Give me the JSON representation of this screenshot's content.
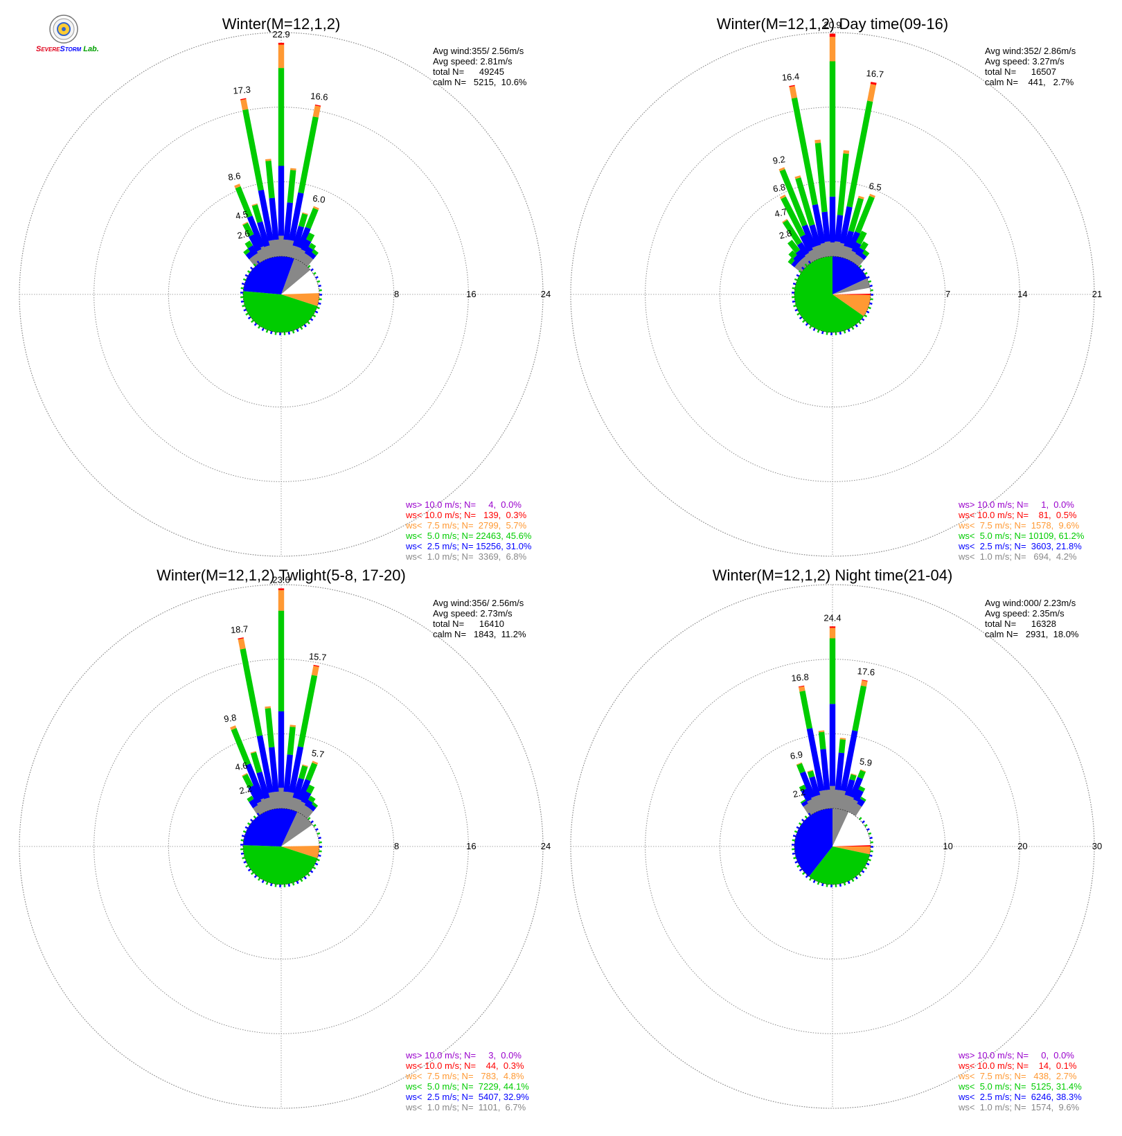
{
  "logo": {
    "text_parts": [
      {
        "text": "S",
        "color": "#e0001a"
      },
      {
        "text": "EVERE",
        "color": "#e0001a"
      },
      {
        "text": "S",
        "color": "#0000ff"
      },
      {
        "text": "TORM",
        "color": "#0000ff"
      },
      {
        "text": "Lab.",
        "color": "#00a000"
      }
    ]
  },
  "colors": {
    "gray": "#888888",
    "blue": "#0000ff",
    "green": "#00cc00",
    "orange": "#ff9933",
    "red": "#ff0000",
    "purple": "#9900cc",
    "grid": "#999999",
    "calm": "#ffffff"
  },
  "chart_data": [
    {
      "type": "windrose",
      "title": "Winter(M=12,1,2)",
      "rings": [
        "8",
        "16",
        "24"
      ],
      "ring_max": 24,
      "stats": [
        "Avg wind:355/ 2.56m/s",
        "Avg speed: 2.81m/s",
        "total N=      49245",
        "calm N=   5215,  10.6%"
      ],
      "directions": [
        {
          "dir": 0,
          "total": 22.9,
          "label": "22.9",
          "parts": {
            "gray": 2.2,
            "blue": 7.5,
            "green": 10.5,
            "orange": 2.5,
            "red": 0.2
          }
        },
        {
          "dir": -11,
          "total": 17.3,
          "label": "17.3",
          "parts": {
            "gray": 1.8,
            "blue": 5.5,
            "green": 8.8,
            "orange": 1.1,
            "red": 0.1
          }
        },
        {
          "dir": 11,
          "total": 16.6,
          "label": "16.6",
          "parts": {
            "gray": 1.8,
            "blue": 5.2,
            "green": 8.3,
            "orange": 1.2,
            "red": 0.1
          }
        },
        {
          "dir": -22,
          "total": 8.6,
          "label": "8.6",
          "parts": {
            "gray": 1.4,
            "blue": 3.5,
            "green": 3.4,
            "orange": 0.3
          }
        },
        {
          "dir": 22,
          "total": 6.0,
          "label": "6.0",
          "parts": {
            "gray": 1.3,
            "blue": 2.3,
            "green": 2.2,
            "orange": 0.2
          }
        },
        {
          "dir": -5.5,
          "total": 10.5,
          "parts": {
            "gray": 1.8,
            "blue": 4.5,
            "green": 4.0,
            "orange": 0.2
          }
        },
        {
          "dir": 5.5,
          "total": 9.5,
          "parts": {
            "gray": 1.8,
            "blue": 4.0,
            "green": 3.5,
            "orange": 0.2
          }
        },
        {
          "dir": -16.5,
          "total": 6.0,
          "parts": {
            "gray": 1.3,
            "blue": 2.7,
            "green": 1.9,
            "orange": 0.1
          }
        },
        {
          "dir": 16.5,
          "total": 5.0,
          "parts": {
            "gray": 1.3,
            "blue": 2.2,
            "green": 1.4,
            "orange": 0.1
          }
        },
        {
          "dir": -27,
          "total": 4.5,
          "label": "4.5",
          "parts": {
            "gray": 1.2,
            "blue": 1.8,
            "green": 1.4,
            "orange": 0.1
          }
        },
        {
          "dir": 27,
          "total": 3.2,
          "parts": {
            "gray": 1.2,
            "blue": 1.2,
            "green": 0.8
          }
        },
        {
          "dir": -33,
          "total": 2.6,
          "label": "2.6",
          "parts": {
            "gray": 1.0,
            "blue": 1.0,
            "green": 0.6
          }
        },
        {
          "dir": 33,
          "total": 2.3,
          "parts": {
            "gray": 1.0,
            "blue": 0.8,
            "green": 0.5
          }
        },
        {
          "dir": -39,
          "total": 2.0,
          "parts": {
            "gray": 1.0,
            "blue": 0.6,
            "green": 0.4
          }
        },
        {
          "dir": 39,
          "total": 1.9,
          "parts": {
            "gray": 1.0,
            "blue": 0.5,
            "green": 0.4
          }
        }
      ],
      "pie": [
        {
          "color": "gray",
          "start": 20,
          "end": 50
        },
        {
          "color": "calm",
          "start": 50,
          "end": 88
        },
        {
          "color": "orange",
          "start": 88,
          "end": 108
        },
        {
          "color": "green",
          "start": 108,
          "end": 275
        },
        {
          "color": "blue",
          "start": 275,
          "end": 380
        }
      ],
      "legend": [
        {
          "text": "ws> 10.0 m/s; N=     4,  0.0%",
          "color": "purple"
        },
        {
          "text": "ws< 10.0 m/s; N=   139,  0.3%",
          "color": "red"
        },
        {
          "text": "ws<  7.5 m/s; N=  2799,  5.7%",
          "color": "orange"
        },
        {
          "text": "ws<  5.0 m/s; N= 22463, 45.6%",
          "color": "green"
        },
        {
          "text": "ws<  2.5 m/s; N= 15256, 31.0%",
          "color": "blue"
        },
        {
          "text": "ws<  1.0 m/s; N=  3369,  6.8%",
          "color": "gray"
        }
      ]
    },
    {
      "type": "windrose",
      "title": "Winter(M=12,1,2) Day time(09-16)",
      "rings": [
        "7",
        "14",
        "21"
      ],
      "ring_max": 21,
      "stats": [
        "Avg wind:352/ 2.86m/s",
        "Avg speed: 3.27m/s",
        "total N=      16507",
        "calm N=    441,   2.7%"
      ],
      "directions": [
        {
          "dir": 0,
          "total": 20.9,
          "label": "20.9",
          "parts": {
            "gray": 1.3,
            "blue": 4.3,
            "green": 12.7,
            "orange": 2.3,
            "red": 0.3
          }
        },
        {
          "dir": -11,
          "total": 16.4,
          "label": "16.4",
          "parts": {
            "gray": 1.3,
            "blue": 3.7,
            "green": 10.2,
            "orange": 1.1,
            "red": 0.1
          }
        },
        {
          "dir": 11,
          "total": 16.7,
          "label": "16.7",
          "parts": {
            "gray": 1.3,
            "blue": 3.5,
            "green": 10.1,
            "orange": 1.6,
            "red": 0.2
          }
        },
        {
          "dir": -5.5,
          "total": 11.0,
          "parts": {
            "gray": 1.4,
            "blue": 2.8,
            "green": 6.5,
            "orange": 0.3
          }
        },
        {
          "dir": 5.5,
          "total": 10.0,
          "parts": {
            "gray": 1.4,
            "blue": 2.5,
            "green": 5.8,
            "orange": 0.3
          }
        },
        {
          "dir": -22,
          "total": 9.2,
          "label": "9.2",
          "parts": {
            "gray": 1.2,
            "blue": 2.2,
            "green": 5.6,
            "orange": 0.2
          }
        },
        {
          "dir": 22,
          "total": 6.5,
          "label": "6.5",
          "parts": {
            "gray": 1.1,
            "blue": 1.6,
            "green": 3.6,
            "orange": 0.2
          }
        },
        {
          "dir": -16.5,
          "total": 8.0,
          "parts": {
            "gray": 1.2,
            "blue": 2.0,
            "green": 4.6,
            "orange": 0.2
          }
        },
        {
          "dir": 16.5,
          "total": 6.0,
          "parts": {
            "gray": 1.1,
            "blue": 1.5,
            "green": 3.2,
            "orange": 0.2
          }
        },
        {
          "dir": -27,
          "total": 6.8,
          "label": "6.8",
          "parts": {
            "gray": 1.0,
            "blue": 1.6,
            "green": 4.0,
            "orange": 0.2
          }
        },
        {
          "dir": 27,
          "total": 3.0,
          "parts": {
            "gray": 0.9,
            "blue": 0.9,
            "green": 1.2
          }
        },
        {
          "dir": -33,
          "total": 4.7,
          "label": "4.7",
          "parts": {
            "gray": 0.9,
            "blue": 1.2,
            "green": 2.5,
            "orange": 0.1
          }
        },
        {
          "dir": 33,
          "total": 2.2,
          "parts": {
            "gray": 0.8,
            "blue": 0.7,
            "green": 0.7
          }
        },
        {
          "dir": -39,
          "total": 2.8,
          "label": "2.8",
          "parts": {
            "gray": 0.8,
            "blue": 0.8,
            "green": 1.2
          }
        },
        {
          "dir": -45,
          "total": 2.0,
          "parts": {
            "gray": 0.8,
            "blue": 0.6,
            "green": 0.6
          }
        },
        {
          "dir": -51,
          "total": 1.6,
          "parts": {
            "gray": 0.8,
            "blue": 0.4,
            "green": 0.4
          }
        },
        {
          "dir": 39,
          "total": 1.6,
          "parts": {
            "gray": 0.8,
            "blue": 0.4,
            "green": 0.4
          }
        }
      ],
      "pie": [
        {
          "color": "blue",
          "start": 0,
          "end": 65
        },
        {
          "color": "gray",
          "start": 65,
          "end": 80
        },
        {
          "color": "calm",
          "start": 80,
          "end": 89
        },
        {
          "color": "red",
          "start": 89,
          "end": 91
        },
        {
          "color": "orange",
          "start": 91,
          "end": 125
        },
        {
          "color": "green",
          "start": 125,
          "end": 360
        }
      ],
      "legend": [
        {
          "text": "ws> 10.0 m/s; N=     1,  0.0%",
          "color": "purple"
        },
        {
          "text": "ws< 10.0 m/s; N=    81,  0.5%",
          "color": "red"
        },
        {
          "text": "ws<  7.5 m/s; N=  1578,  9.6%",
          "color": "orange"
        },
        {
          "text": "ws<  5.0 m/s; N= 10109, 61.2%",
          "color": "green"
        },
        {
          "text": "ws<  2.5 m/s; N=  3603, 21.8%",
          "color": "blue"
        },
        {
          "text": "ws<  1.0 m/s; N=   694,  4.2%",
          "color": "gray"
        }
      ]
    },
    {
      "type": "windrose",
      "title": "Winter(M=12,1,2) Twlight(5-8, 17-20)",
      "rings": [
        "8",
        "16",
        "24"
      ],
      "ring_max": 24,
      "stats": [
        "Avg wind:356/ 2.56m/s",
        "Avg speed: 2.73m/s",
        "total N=      16410",
        "calm N=   1843,  11.2%"
      ],
      "directions": [
        {
          "dir": 0,
          "total": 23.6,
          "label": "23.6",
          "parts": {
            "gray": 2.2,
            "blue": 8.2,
            "green": 10.8,
            "orange": 2.2,
            "red": 0.2
          }
        },
        {
          "dir": -11,
          "total": 18.7,
          "label": "18.7",
          "parts": {
            "gray": 1.8,
            "blue": 6.2,
            "green": 9.5,
            "orange": 1.1,
            "red": 0.1
          }
        },
        {
          "dir": 11,
          "total": 15.7,
          "label": "15.7",
          "parts": {
            "gray": 1.8,
            "blue": 5.0,
            "green": 7.8,
            "orange": 1.0,
            "red": 0.1
          }
        },
        {
          "dir": -5.5,
          "total": 11.0,
          "parts": {
            "gray": 1.8,
            "blue": 4.8,
            "green": 4.2,
            "orange": 0.2
          }
        },
        {
          "dir": 5.5,
          "total": 9.0,
          "parts": {
            "gray": 1.8,
            "blue": 4.0,
            "green": 3.0,
            "orange": 0.2
          }
        },
        {
          "dir": -22,
          "total": 9.8,
          "label": "9.8",
          "parts": {
            "gray": 1.4,
            "blue": 4.0,
            "green": 4.1,
            "orange": 0.3
          }
        },
        {
          "dir": 22,
          "total": 5.7,
          "label": "5.7",
          "parts": {
            "gray": 1.3,
            "blue": 2.3,
            "green": 1.9,
            "orange": 0.2
          }
        },
        {
          "dir": -16.5,
          "total": 6.5,
          "parts": {
            "gray": 1.3,
            "blue": 2.9,
            "green": 2.2,
            "orange": 0.1
          }
        },
        {
          "dir": 16.5,
          "total": 5.0,
          "parts": {
            "gray": 1.3,
            "blue": 2.2,
            "green": 1.4,
            "orange": 0.1
          }
        },
        {
          "dir": -27,
          "total": 4.6,
          "label": "4.6",
          "parts": {
            "gray": 1.2,
            "blue": 1.9,
            "green": 1.4,
            "orange": 0.1
          }
        },
        {
          "dir": 27,
          "total": 3.2,
          "parts": {
            "gray": 1.2,
            "blue": 1.2,
            "green": 0.8
          }
        },
        {
          "dir": -33,
          "total": 2.2,
          "label": "2.2",
          "parts": {
            "gray": 1.0,
            "blue": 0.8,
            "green": 0.4
          }
        },
        {
          "dir": 33,
          "total": 2.2,
          "parts": {
            "gray": 1.0,
            "blue": 0.7,
            "green": 0.5
          }
        },
        {
          "dir": 39,
          "total": 1.8,
          "parts": {
            "gray": 1.0,
            "blue": 0.5,
            "green": 0.3
          }
        }
      ],
      "pie": [
        {
          "color": "gray",
          "start": 25,
          "end": 55
        },
        {
          "color": "calm",
          "start": 55,
          "end": 89
        },
        {
          "color": "orange",
          "start": 89,
          "end": 108
        },
        {
          "color": "green",
          "start": 108,
          "end": 272
        },
        {
          "color": "blue",
          "start": 272,
          "end": 385
        }
      ],
      "legend": [
        {
          "text": "ws> 10.0 m/s; N=     3,  0.0%",
          "color": "purple"
        },
        {
          "text": "ws< 10.0 m/s; N=    44,  0.3%",
          "color": "red"
        },
        {
          "text": "ws<  7.5 m/s; N=   783,  4.8%",
          "color": "orange"
        },
        {
          "text": "ws<  5.0 m/s; N=  7229, 44.1%",
          "color": "green"
        },
        {
          "text": "ws<  2.5 m/s; N=  5407, 32.9%",
          "color": "blue"
        },
        {
          "text": "ws<  1.0 m/s; N=  1101,  6.7%",
          "color": "gray"
        }
      ]
    },
    {
      "type": "windrose",
      "title": "Winter(M=12,1,2) Night time(21-04)",
      "rings": [
        "10",
        "20",
        "30"
      ],
      "ring_max": 30,
      "stats": [
        "Avg wind:000/ 2.23m/s",
        "Avg speed: 2.35m/s",
        "total N=      16328",
        "calm N=   2931,  18.0%"
      ],
      "directions": [
        {
          "dir": 0,
          "total": 24.4,
          "label": "24.4",
          "parts": {
            "gray": 3.0,
            "blue": 11.0,
            "green": 8.8,
            "orange": 1.4,
            "red": 0.2
          }
        },
        {
          "dir": -11,
          "total": 16.8,
          "label": "16.8",
          "parts": {
            "gray": 2.5,
            "blue": 8.5,
            "green": 5.1,
            "orange": 0.6,
            "red": 0.1
          }
        },
        {
          "dir": 11,
          "total": 17.6,
          "label": "17.6",
          "parts": {
            "gray": 2.5,
            "blue": 8.2,
            "green": 6.1,
            "orange": 0.7,
            "red": 0.1
          }
        },
        {
          "dir": -5.5,
          "total": 10.5,
          "parts": {
            "gray": 2.5,
            "blue": 5.5,
            "green": 2.3,
            "orange": 0.2
          }
        },
        {
          "dir": 5.5,
          "total": 9.5,
          "parts": {
            "gray": 2.5,
            "blue": 5.0,
            "green": 1.8,
            "orange": 0.2
          }
        },
        {
          "dir": -22,
          "total": 6.9,
          "label": "6.9",
          "parts": {
            "gray": 2.0,
            "blue": 3.6,
            "green": 1.2,
            "orange": 0.1
          }
        },
        {
          "dir": 22,
          "total": 5.9,
          "label": "5.9",
          "parts": {
            "gray": 2.0,
            "blue": 2.8,
            "green": 1.0,
            "orange": 0.1
          }
        },
        {
          "dir": -16.5,
          "total": 5.5,
          "parts": {
            "gray": 2.0,
            "blue": 2.6,
            "green": 0.8,
            "orange": 0.1
          }
        },
        {
          "dir": 16.5,
          "total": 5.0,
          "parts": {
            "gray": 2.0,
            "blue": 2.2,
            "green": 0.7,
            "orange": 0.1
          }
        },
        {
          "dir": -27,
          "total": 4.0,
          "parts": {
            "gray": 1.8,
            "blue": 1.6,
            "green": 0.6
          }
        },
        {
          "dir": 27,
          "total": 3.8,
          "parts": {
            "gray": 1.8,
            "blue": 1.5,
            "green": 0.5
          }
        },
        {
          "dir": -33,
          "total": 2.2,
          "label": "2.2",
          "parts": {
            "gray": 1.5,
            "blue": 0.5,
            "green": 0.2
          }
        },
        {
          "dir": 33,
          "total": 2.6,
          "parts": {
            "gray": 1.5,
            "blue": 0.8,
            "green": 0.3
          }
        }
      ],
      "pie": [
        {
          "color": "gray",
          "start": 0,
          "end": 25
        },
        {
          "color": "calm",
          "start": 25,
          "end": 88
        },
        {
          "color": "red",
          "start": 88,
          "end": 90
        },
        {
          "color": "orange",
          "start": 90,
          "end": 102
        },
        {
          "color": "green",
          "start": 102,
          "end": 218
        },
        {
          "color": "blue",
          "start": 218,
          "end": 360
        }
      ],
      "legend": [
        {
          "text": "ws> 10.0 m/s; N=     0,  0.0%",
          "color": "purple"
        },
        {
          "text": "ws< 10.0 m/s; N=    14,  0.1%",
          "color": "red"
        },
        {
          "text": "ws<  7.5 m/s; N=   438,  2.7%",
          "color": "orange"
        },
        {
          "text": "ws<  5.0 m/s; N=  5125, 31.4%",
          "color": "green"
        },
        {
          "text": "ws<  2.5 m/s; N=  6246, 38.3%",
          "color": "blue"
        },
        {
          "text": "ws<  1.0 m/s; N=  1574,  9.6%",
          "color": "gray"
        }
      ]
    }
  ]
}
